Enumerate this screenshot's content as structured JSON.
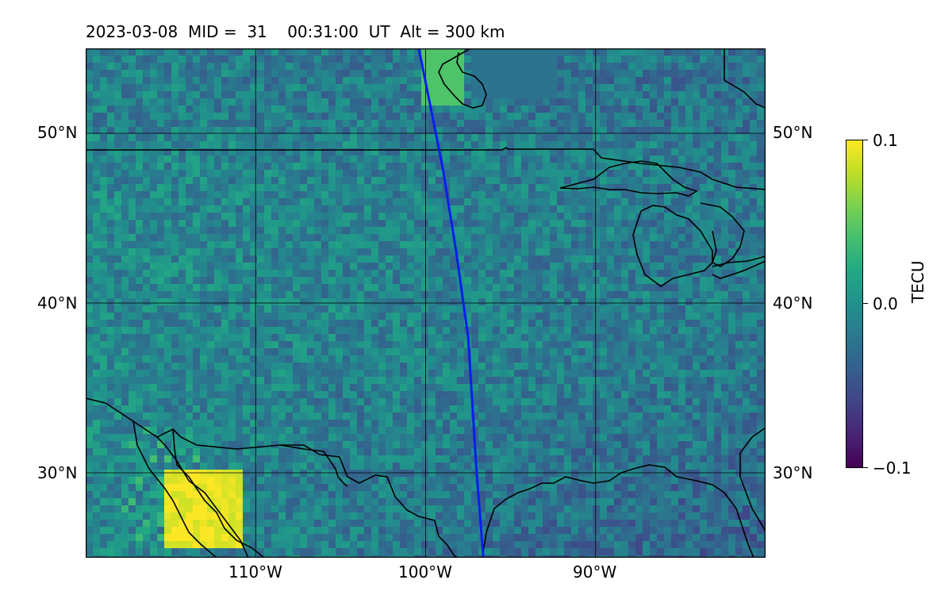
{
  "title": "2023-03-08  MID =  31    00:31:00  UT  Alt = 300 km",
  "map": {
    "lon_range": [
      -120,
      -80
    ],
    "lat_range": [
      25,
      55
    ],
    "grid_lons": [
      -110,
      -100,
      -90
    ],
    "grid_lats": [
      30,
      40,
      50
    ],
    "lon_labels": [
      "110°W",
      "100°W",
      "90°W"
    ],
    "lat_labels_left": [
      "50°N",
      "40°N",
      "30°N"
    ],
    "lat_labels_right": [
      "50°N",
      "40°N",
      "30°N"
    ],
    "grid_color": "#000000",
    "coast_color": "#000000",
    "track_color": "#0a1ef0"
  },
  "colorbar": {
    "colormap": "viridis",
    "min": -0.1,
    "max": 0.1,
    "tick_labels": [
      "0.1",
      "0.0",
      "−0.1"
    ],
    "unit_label": "TECU"
  },
  "track": {
    "name": "satellite-track",
    "points": [
      [
        -100.4,
        55.0
      ],
      [
        -99.6,
        51.0
      ],
      [
        -99.0,
        48.0
      ],
      [
        -98.2,
        43.0
      ],
      [
        -97.5,
        38.0
      ],
      [
        -97.0,
        30.0
      ],
      [
        -96.6,
        25.0
      ]
    ]
  }
}
